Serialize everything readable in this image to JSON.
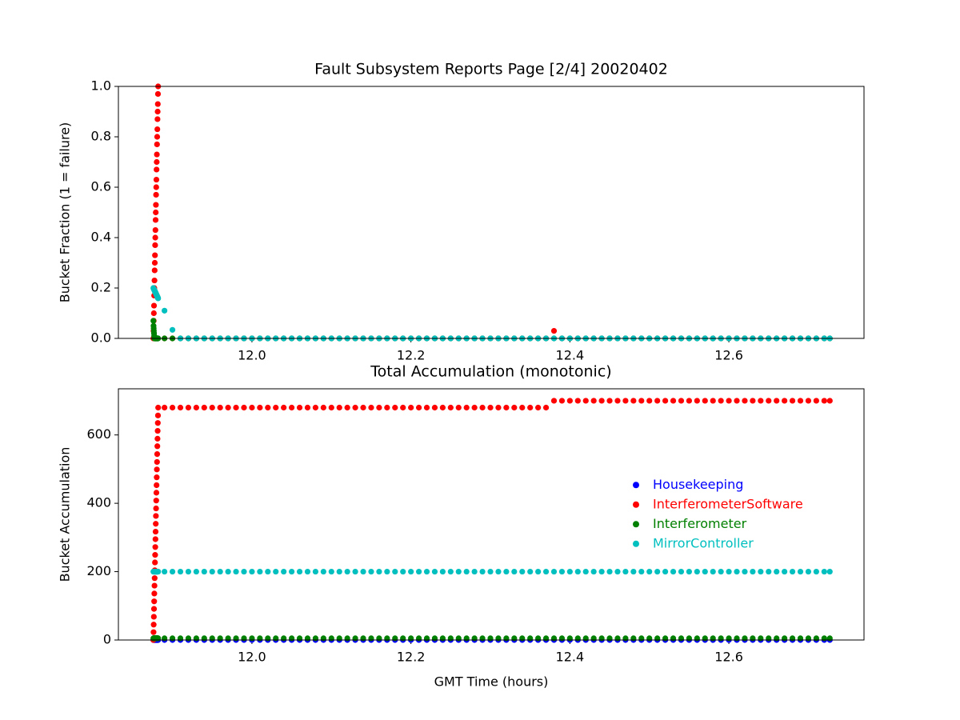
{
  "chart_data": [
    {
      "type": "scatter",
      "title": "Fault Subsystem Reports Page [2/4] 20020402",
      "ylabel": "Bucket Fraction (1 = failure)",
      "x": [
        11.876,
        11.8762,
        11.8764,
        11.8766,
        11.8768,
        11.877,
        11.8772,
        11.8774,
        11.8776,
        11.8778,
        11.878,
        11.8782,
        11.8784,
        11.8786,
        11.8788,
        11.879,
        11.8792,
        11.8794,
        11.8796,
        11.8798,
        11.88,
        11.8802,
        11.8804,
        11.8806,
        11.8808,
        11.881,
        11.8812,
        11.8814,
        11.8816,
        11.8818,
        11.882,
        11.89,
        11.9,
        11.91,
        11.92,
        11.93,
        11.94,
        11.95,
        11.96,
        11.97,
        11.98,
        11.99,
        12,
        12.01,
        12.02,
        12.03,
        12.04,
        12.05,
        12.06,
        12.07,
        12.08,
        12.09,
        12.1,
        12.11,
        12.12,
        12.13,
        12.14,
        12.15,
        12.16,
        12.17,
        12.18,
        12.19,
        12.2,
        12.21,
        12.22,
        12.23,
        12.24,
        12.25,
        12.26,
        12.27,
        12.28,
        12.29,
        12.3,
        12.31,
        12.32,
        12.33,
        12.34,
        12.35,
        12.36,
        12.37,
        12.38,
        12.39,
        12.4,
        12.41,
        12.42,
        12.43,
        12.44,
        12.45,
        12.46,
        12.47,
        12.48,
        12.49,
        12.5,
        12.51,
        12.52,
        12.53,
        12.54,
        12.55,
        12.56,
        12.57,
        12.58,
        12.59,
        12.6,
        12.61,
        12.62,
        12.63,
        12.64,
        12.65,
        12.66,
        12.67,
        12.68,
        12.69,
        12.7,
        12.71,
        12.72,
        12.727
      ],
      "xlim": [
        11.832,
        12.77
      ],
      "xticks": [
        {
          "value": 12,
          "label": "12.0"
        },
        12.2,
        12.4,
        12.6
      ],
      "ylim": [
        0,
        1
      ],
      "yticks": [
        {
          "value": 0,
          "label": "0.0"
        },
        0.2,
        0.4,
        0.6,
        0.8,
        {
          "value": 1,
          "label": "1.0"
        }
      ],
      "series": [
        {
          "name": "InterferometerSoftware",
          "color": "#ff0000",
          "values": [
            0,
            0.03,
            0.07,
            0.1,
            0.13,
            0.17,
            0.2,
            0.23,
            0.27,
            0.3,
            0.33,
            0.37,
            0.4,
            0.43,
            0.47,
            0.5,
            0.53,
            0.57,
            0.6,
            0.63,
            0.67,
            0.7,
            0.73,
            0.77,
            0.8,
            0.83,
            0.87,
            0.9,
            0.93,
            0.97,
            1,
            0,
            0,
            0,
            0,
            0,
            0,
            0,
            0,
            0,
            0,
            0,
            0,
            0,
            0,
            0,
            0,
            0,
            0,
            0,
            0,
            0,
            0,
            0,
            0,
            0,
            0,
            0,
            0,
            0,
            0,
            0,
            0,
            0,
            0,
            0,
            0,
            0,
            0,
            0,
            0,
            0,
            0,
            0,
            0,
            0,
            0,
            0,
            0,
            0,
            0.03,
            0,
            0,
            0,
            0,
            0,
            0,
            0,
            0,
            0,
            0,
            0,
            0,
            0,
            0,
            0,
            0,
            0,
            0,
            0,
            0,
            0,
            0,
            0,
            0,
            0,
            0,
            0,
            0,
            0,
            0,
            0,
            0,
            0,
            0,
            0
          ]
        },
        {
          "name": "Interferometer",
          "color": "#008000",
          "values": [
            0.07,
            0.05,
            0.04,
            0.03,
            0.02,
            0.01,
            0,
            0,
            0,
            0,
            0,
            0,
            0,
            0,
            0,
            0,
            0,
            0,
            0,
            0,
            0,
            0,
            0,
            0,
            0,
            0,
            0,
            0,
            0,
            0,
            0,
            0,
            0,
            0,
            0,
            0,
            0,
            0,
            0,
            0,
            0,
            0,
            0,
            0,
            0,
            0,
            0,
            0,
            0,
            0,
            0,
            0,
            0,
            0,
            0,
            0,
            0,
            0,
            0,
            0,
            0,
            0,
            0,
            0,
            0,
            0,
            0,
            0,
            0,
            0,
            0,
            0,
            0,
            0,
            0,
            0,
            0,
            0,
            0,
            0,
            0,
            0,
            0,
            0,
            0,
            0,
            0,
            0,
            0,
            0,
            0,
            0,
            0,
            0,
            0,
            0,
            0,
            0,
            0,
            0,
            0,
            0,
            0,
            0,
            0,
            0,
            0,
            0,
            0,
            0,
            0,
            0,
            0,
            0,
            0,
            0
          ]
        },
        {
          "name": "MirrorController",
          "color": "#00bfbf",
          "values": [
            0.2,
            0.199,
            0.197,
            0.196,
            0.194,
            0.193,
            0.192,
            0.19,
            0.189,
            0.188,
            0.186,
            0.185,
            0.183,
            0.182,
            0.181,
            0.179,
            0.178,
            0.177,
            0.175,
            0.174,
            0.172,
            0.171,
            0.17,
            0.168,
            0.167,
            0.166,
            0.164,
            0.163,
            0.161,
            0.16,
            0.159,
            0.11,
            0.034,
            0,
            0,
            0,
            0,
            0,
            0,
            0,
            0,
            0,
            0,
            0,
            0,
            0,
            0,
            0,
            0,
            0,
            0,
            0,
            0,
            0,
            0,
            0,
            0,
            0,
            0,
            0,
            0,
            0,
            0,
            0,
            0,
            0,
            0,
            0,
            0,
            0,
            0,
            0,
            0,
            0,
            0,
            0,
            0,
            0,
            0,
            0,
            0,
            0,
            0,
            0,
            0,
            0,
            0,
            0,
            0,
            0,
            0,
            0,
            0,
            0,
            0,
            0,
            0,
            0,
            0,
            0,
            0,
            0,
            0,
            0,
            0,
            0,
            0,
            0,
            0,
            0,
            0,
            0,
            0,
            0,
            0,
            0
          ]
        }
      ]
    },
    {
      "type": "scatter",
      "title": "Total Accumulation (monotonic)",
      "ylabel": "Bucket Accumulation",
      "xlabel": "GMT Time (hours)",
      "legend": "center right",
      "x": [
        11.876,
        11.8762,
        11.8764,
        11.8766,
        11.8768,
        11.877,
        11.8772,
        11.8774,
        11.8776,
        11.8778,
        11.878,
        11.8782,
        11.8784,
        11.8786,
        11.8788,
        11.879,
        11.8792,
        11.8794,
        11.8796,
        11.8798,
        11.88,
        11.8802,
        11.8804,
        11.8806,
        11.8808,
        11.881,
        11.8812,
        11.8814,
        11.8816,
        11.8818,
        11.882,
        11.89,
        11.9,
        11.91,
        11.92,
        11.93,
        11.94,
        11.95,
        11.96,
        11.97,
        11.98,
        11.99,
        12,
        12.01,
        12.02,
        12.03,
        12.04,
        12.05,
        12.06,
        12.07,
        12.08,
        12.09,
        12.1,
        12.11,
        12.12,
        12.13,
        12.14,
        12.15,
        12.16,
        12.17,
        12.18,
        12.19,
        12.2,
        12.21,
        12.22,
        12.23,
        12.24,
        12.25,
        12.26,
        12.27,
        12.28,
        12.29,
        12.3,
        12.31,
        12.32,
        12.33,
        12.34,
        12.35,
        12.36,
        12.37,
        12.38,
        12.39,
        12.4,
        12.41,
        12.42,
        12.43,
        12.44,
        12.45,
        12.46,
        12.47,
        12.48,
        12.49,
        12.5,
        12.51,
        12.52,
        12.53,
        12.54,
        12.55,
        12.56,
        12.57,
        12.58,
        12.59,
        12.6,
        12.61,
        12.62,
        12.63,
        12.64,
        12.65,
        12.66,
        12.67,
        12.68,
        12.69,
        12.7,
        12.71,
        12.72,
        12.727
      ],
      "xlim": [
        11.832,
        12.77
      ],
      "xticks": [
        {
          "value": 12,
          "label": "12.0"
        },
        12.2,
        12.4,
        12.6
      ],
      "ylim": [
        0,
        735
      ],
      "yticks": [
        0,
        200,
        400,
        600
      ],
      "series": [
        {
          "name": "Housekeeping",
          "color": "#0000ff",
          "values": [
            0,
            0,
            0,
            0,
            0,
            0,
            0,
            0,
            0,
            0,
            0,
            0,
            0,
            0,
            0,
            0,
            0,
            0,
            0,
            0,
            0,
            0,
            0,
            0,
            0,
            0,
            0,
            0,
            0,
            0,
            0,
            0,
            0,
            0,
            0,
            0,
            0,
            0,
            0,
            0,
            0,
            0,
            0,
            0,
            0,
            0,
            0,
            0,
            0,
            0,
            0,
            0,
            0,
            0,
            0,
            0,
            0,
            0,
            0,
            0,
            0,
            0,
            0,
            0,
            0,
            0,
            0,
            0,
            0,
            0,
            0,
            0,
            0,
            0,
            0,
            0,
            0,
            0,
            0,
            0,
            0,
            0,
            0,
            0,
            0,
            0,
            0,
            0,
            0,
            0,
            0,
            0,
            0,
            0,
            0,
            0,
            0,
            0,
            0,
            0,
            0,
            0,
            0,
            0,
            0,
            0,
            0,
            0,
            0,
            0,
            0,
            0,
            0,
            0,
            0,
            0
          ]
        },
        {
          "name": "InterferometerSoftware",
          "color": "#ff0000",
          "values": [
            0,
            23,
            45,
            68,
            91,
            113,
            136,
            159,
            181,
            204,
            227,
            249,
            272,
            295,
            317,
            340,
            363,
            385,
            408,
            431,
            453,
            476,
            499,
            521,
            544,
            567,
            589,
            612,
            635,
            657,
            680,
            680,
            680,
            680,
            680,
            680,
            680,
            680,
            680,
            680,
            680,
            680,
            680,
            680,
            680,
            680,
            680,
            680,
            680,
            680,
            680,
            680,
            680,
            680,
            680,
            680,
            680,
            680,
            680,
            680,
            680,
            680,
            680,
            680,
            680,
            680,
            680,
            680,
            680,
            680,
            680,
            680,
            680,
            680,
            680,
            680,
            680,
            680,
            680,
            680,
            700,
            700,
            700,
            700,
            700,
            700,
            700,
            700,
            700,
            700,
            700,
            700,
            700,
            700,
            700,
            700,
            700,
            700,
            700,
            700,
            700,
            700,
            700,
            700,
            700,
            700,
            700,
            700,
            700,
            700,
            700,
            700,
            700,
            700,
            700,
            700
          ]
        },
        {
          "name": "Interferometer",
          "color": "#008000",
          "values": [
            5,
            5,
            5,
            5,
            5,
            5,
            5,
            5,
            5,
            5,
            5,
            5,
            5,
            5,
            5,
            5,
            5,
            5,
            5,
            5,
            5,
            5,
            5,
            5,
            5,
            5,
            5,
            5,
            5,
            5,
            5,
            5,
            5,
            5,
            5,
            5,
            5,
            5,
            5,
            5,
            5,
            5,
            5,
            5,
            5,
            5,
            5,
            5,
            5,
            5,
            5,
            5,
            5,
            5,
            5,
            5,
            5,
            5,
            5,
            5,
            5,
            5,
            5,
            5,
            5,
            5,
            5,
            5,
            5,
            5,
            5,
            5,
            5,
            5,
            5,
            5,
            5,
            5,
            5,
            5,
            5,
            5,
            5,
            5,
            5,
            5,
            5,
            5,
            5,
            5,
            5,
            5,
            5,
            5,
            5,
            5,
            5,
            5,
            5,
            5,
            5,
            5,
            5,
            5,
            5,
            5,
            5,
            5,
            5,
            5,
            5,
            5,
            5,
            5,
            5,
            5
          ]
        },
        {
          "name": "MirrorController",
          "color": "#00bfbf",
          "values": [
            200,
            200,
            200,
            200,
            200,
            200,
            200,
            200,
            200,
            200,
            200,
            200,
            200,
            200,
            200,
            200,
            200,
            200,
            200,
            200,
            200,
            200,
            200,
            200,
            200,
            200,
            200,
            200,
            200,
            200,
            200,
            200,
            200,
            200,
            200,
            200,
            200,
            200,
            200,
            200,
            200,
            200,
            200,
            200,
            200,
            200,
            200,
            200,
            200,
            200,
            200,
            200,
            200,
            200,
            200,
            200,
            200,
            200,
            200,
            200,
            200,
            200,
            200,
            200,
            200,
            200,
            200,
            200,
            200,
            200,
            200,
            200,
            200,
            200,
            200,
            200,
            200,
            200,
            200,
            200,
            200,
            200,
            200,
            200,
            200,
            200,
            200,
            200,
            200,
            200,
            200,
            200,
            200,
            200,
            200,
            200,
            200,
            200,
            200,
            200,
            200,
            200,
            200,
            200,
            200,
            200,
            200,
            200,
            200,
            200,
            200,
            200,
            200,
            200,
            200,
            200
          ]
        }
      ]
    }
  ]
}
